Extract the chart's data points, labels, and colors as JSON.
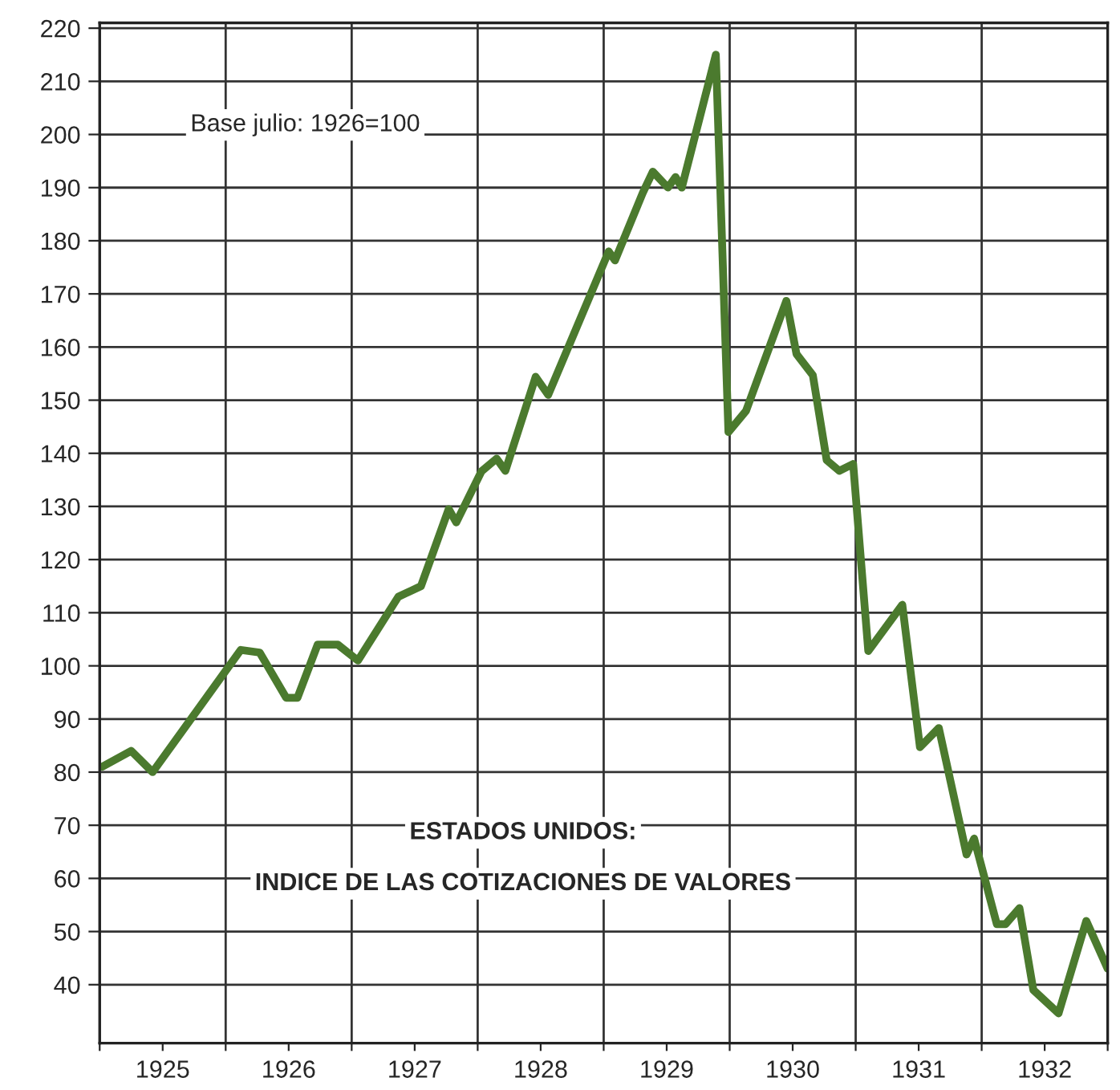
{
  "chart_data": {
    "type": "line",
    "title": "ESTADOS UNIDOS:",
    "subtitle": "INDICE DE LAS COTIZACIONES DE VALORES",
    "annotations": [
      "Base julio: 1926=100"
    ],
    "x": [
      1925.02,
      1925.25,
      1925.42,
      1926.12,
      1926.27,
      1926.48,
      1926.57,
      1926.73,
      1926.89,
      1927.05,
      1927.37,
      1927.55,
      1927.77,
      1927.83,
      1928.03,
      1928.15,
      1928.22,
      1928.46,
      1928.56,
      1929.04,
      1929.09,
      1929.31,
      1929.39,
      1929.51,
      1929.57,
      1929.62,
      1929.89,
      1929.99,
      1930.13,
      1930.45,
      1930.53,
      1930.66,
      1930.77,
      1930.87,
      1930.98,
      1931.1,
      1931.37,
      1931.51,
      1931.66,
      1931.88,
      1931.94,
      1932.12,
      1932.19,
      1932.3,
      1932.41,
      1932.61,
      1932.83,
      1933.0
    ],
    "series": [
      {
        "color": "#4b7a2e",
        "values": [
          81,
          84,
          80,
          103,
          102.5,
          94,
          94,
          104,
          104,
          101,
          113,
          115,
          129.5,
          127,
          136.6,
          139,
          136.7,
          154.4,
          151,
          178,
          176.3,
          189,
          193,
          190,
          192,
          190,
          215,
          144,
          148,
          168.7,
          158.7,
          154.7,
          138.7,
          136.7,
          138,
          102.8,
          111.5,
          84.7,
          88.3,
          64.5,
          67.5,
          51.4,
          51.4,
          54.4,
          39,
          34.6,
          52,
          43
        ]
      }
    ],
    "xlim": [
      1925,
      1933
    ],
    "xticks": [
      {
        "value": 1925,
        "label": null
      },
      {
        "value": 1925.5,
        "label": "1925"
      },
      {
        "value": 1926,
        "label": null
      },
      {
        "value": 1926.5,
        "label": "1926"
      },
      {
        "value": 1927,
        "label": null
      },
      {
        "value": 1927.5,
        "label": "1927"
      },
      {
        "value": 1928,
        "label": null
      },
      {
        "value": 1928.5,
        "label": "1928"
      },
      {
        "value": 1929,
        "label": null
      },
      {
        "value": 1929.5,
        "label": "1929"
      },
      {
        "value": 1930,
        "label": null
      },
      {
        "value": 1930.5,
        "label": "1930"
      },
      {
        "value": 1931,
        "label": null
      },
      {
        "value": 1931.5,
        "label": "1931"
      },
      {
        "value": 1932,
        "label": null
      },
      {
        "value": 1932.5,
        "label": "1932"
      },
      {
        "value": 1933,
        "label": null
      }
    ],
    "ylim": [
      29,
      221
    ],
    "yticks": [
      40,
      50,
      60,
      70,
      80,
      90,
      100,
      110,
      120,
      130,
      140,
      150,
      160,
      170,
      180,
      190,
      200,
      210,
      220
    ],
    "grid": true,
    "line_style": "solid",
    "marker": "none"
  }
}
